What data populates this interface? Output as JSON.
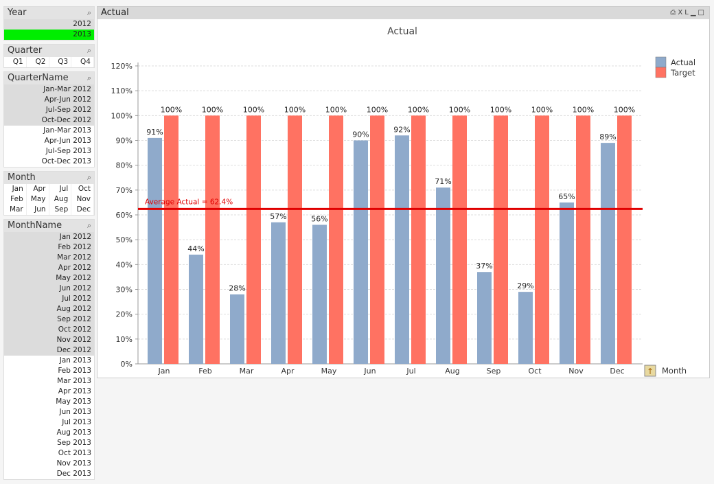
{
  "listboxes": {
    "year": {
      "title": "Year",
      "items": [
        "2012",
        "2013"
      ],
      "selected": "2013"
    },
    "quarter": {
      "title": "Quarter",
      "items": [
        "Q1",
        "Q2",
        "Q3",
        "Q4"
      ]
    },
    "quartername": {
      "title": "QuarterName",
      "items": [
        "Jan-Mar 2012",
        "Apr-Jun 2012",
        "Jul-Sep 2012",
        "Oct-Dec 2012",
        "Jan-Mar 2013",
        "Apr-Jun 2013",
        "Jul-Sep 2013",
        "Oct-Dec 2013"
      ]
    },
    "month": {
      "title": "Month",
      "items": [
        "Jan",
        "Apr",
        "Jul",
        "Oct",
        "Feb",
        "May",
        "Aug",
        "Nov",
        "Mar",
        "Jun",
        "Sep",
        "Dec"
      ]
    },
    "monthname": {
      "title": "MonthName",
      "items": [
        "Jan 2012",
        "Feb 2012",
        "Mar 2012",
        "Apr 2012",
        "May 2012",
        "Jun 2012",
        "Jul 2012",
        "Aug 2012",
        "Sep 2012",
        "Oct 2012",
        "Nov 2012",
        "Dec 2012",
        "Jan 2013",
        "Feb 2013",
        "Mar 2013",
        "Apr 2013",
        "May 2013",
        "Jun 2013",
        "Jul 2013",
        "Aug 2013",
        "Sep 2013",
        "Oct 2013",
        "Nov 2013",
        "Dec 2013"
      ]
    }
  },
  "panel": {
    "caption": "Actual",
    "icons": [
      "print-icon",
      "xl-icon",
      "minimize-icon",
      "maximize-icon"
    ],
    "xl_label": "XL"
  },
  "chart_data": {
    "type": "bar",
    "title": "Actual",
    "categories": [
      "Jan",
      "Feb",
      "Mar",
      "Apr",
      "May",
      "Jun",
      "Jul",
      "Aug",
      "Sep",
      "Oct",
      "Nov",
      "Dec"
    ],
    "series": [
      {
        "name": "Actual",
        "color": "#8faacb",
        "values": [
          91,
          44,
          28,
          57,
          56,
          90,
          92,
          71,
          37,
          29,
          65,
          89
        ]
      },
      {
        "name": "Target",
        "color": "#ff7262",
        "values": [
          100,
          100,
          100,
          100,
          100,
          100,
          100,
          100,
          100,
          100,
          100,
          100
        ]
      }
    ],
    "ylim": [
      0,
      120
    ],
    "yticks": [
      0,
      10,
      20,
      30,
      40,
      50,
      60,
      70,
      80,
      90,
      100,
      110,
      120
    ],
    "yformat": "%",
    "reference_line": {
      "label": "Average Actual = 62.4%",
      "value": 62.4,
      "color": "#e00000"
    },
    "xlabel": "Month",
    "grid": true,
    "legend": "top-right"
  }
}
